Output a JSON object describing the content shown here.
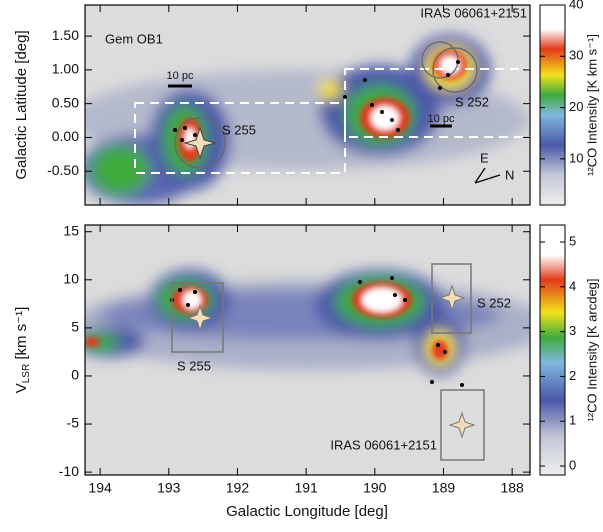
{
  "chart_data": [
    {
      "type": "map",
      "ylabel": "Galactic Latitude [deg]",
      "xlim": [
        194.22,
        187.74
      ],
      "ylim": [
        -1.0,
        1.96
      ],
      "xticks": [
        194,
        193,
        192,
        191,
        190,
        189,
        188
      ],
      "xtick_labels": false,
      "yticks": [
        {
          "value": 1.5,
          "label": "1.50"
        },
        {
          "value": 1.0,
          "label": "1.00"
        },
        {
          "value": 0.5,
          "label": "0.50"
        },
        {
          "value": 0.0,
          "label": "0.00"
        },
        {
          "value": -0.5,
          "label": "-0.50"
        }
      ],
      "colorbar": {
        "label": "¹²CO Intensity [K km s⁻¹]",
        "lim": [
          1,
          40
        ],
        "ticks": [
          10,
          20,
          30,
          40
        ]
      },
      "annotations": {
        "region": "Gem OB1",
        "iras": "IRAS 06061+2151",
        "scale_left": "10 pc",
        "scale_right": "10 pc",
        "s255": "S 255",
        "s252": "S 252",
        "east": "E",
        "north": "N"
      }
    },
    {
      "type": "map",
      "xlabel": "Galactic Longitude [deg]",
      "ylabel": {
        "main": "V",
        "sub": "LSR",
        "unit": " [km s⁻¹]"
      },
      "xlim": [
        194.22,
        187.74
      ],
      "ylim": [
        -10.3,
        15.7
      ],
      "xticks": [
        194,
        193,
        192,
        191,
        190,
        189,
        188
      ],
      "xtick_labels": true,
      "yticks": [
        15,
        10,
        5,
        0,
        -5,
        -10
      ],
      "colorbar": {
        "label": "¹²CO Intensity [K arcdeg]",
        "lim": [
          -0.2,
          5.38
        ],
        "ticks": [
          0,
          1,
          2,
          3,
          4,
          5
        ]
      },
      "annotations": {
        "s255": "S 255",
        "s252": "S 252",
        "iras": "IRAS 06061+2151"
      }
    }
  ]
}
